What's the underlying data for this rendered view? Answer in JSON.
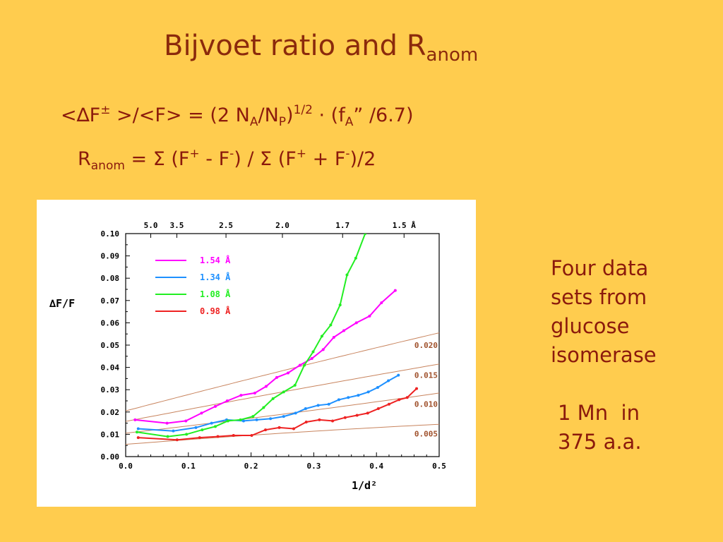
{
  "slide": {
    "title_main": "Bijvoet ratio  and  R",
    "title_sub": "anom",
    "eq1": {
      "p1": "<∆F",
      "sup1": "±",
      "p2": " >/<F> = (2 N",
      "sub1": "A",
      "p3": "/N",
      "sub2": "P",
      "p4": ")",
      "sup2": "1/2",
      "p5": " · (f",
      "sub3": "A",
      "p6": "” /6.7)"
    },
    "eq2": {
      "p1": "R",
      "sub1": "anom",
      "p2": " = Σ (F",
      "sup1": "+",
      "p3": " - F",
      "sup2": "-",
      "p4": ") / Σ (F",
      "sup3": "+",
      "p5": " + F",
      "sup4": "-",
      "p6": ")/2"
    },
    "note1": "Four data\nsets from\nglucose\nisomerase",
    "note2": "1 Mn  in\n375 a.a."
  },
  "chart_data": {
    "type": "line",
    "ylabel": "∆F/F",
    "xlabel": "1/d²",
    "xlim": [
      0.0,
      0.5
    ],
    "ylim": [
      0.0,
      0.1
    ],
    "x_ticks": [
      "0.0",
      "0.1",
      "0.2",
      "0.3",
      "0.4",
      "0.5"
    ],
    "y_ticks": [
      "0.00",
      "0.01",
      "0.02",
      "0.03",
      "0.04",
      "0.05",
      "0.06",
      "0.07",
      "0.08",
      "0.09",
      "0.10"
    ],
    "top_axis_ticks": [
      {
        "x": 0.04,
        "label": "5.0"
      },
      {
        "x": 0.0816,
        "label": "3.5"
      },
      {
        "x": 0.16,
        "label": "2.5"
      },
      {
        "x": 0.25,
        "label": "2.0"
      },
      {
        "x": 0.346,
        "label": "1.7"
      },
      {
        "x": 0.444,
        "label": "1.5 Å"
      }
    ],
    "legend_position": "top-left",
    "series": [
      {
        "name": "1.54 Å",
        "color": "#FF00FF",
        "x": [
          0.015,
          0.066,
          0.096,
          0.121,
          0.143,
          0.162,
          0.184,
          0.206,
          0.224,
          0.241,
          0.259,
          0.278,
          0.297,
          0.315,
          0.332,
          0.348,
          0.368,
          0.389,
          0.408,
          0.43
        ],
        "y": [
          0.0165,
          0.015,
          0.016,
          0.0195,
          0.0225,
          0.025,
          0.0275,
          0.0285,
          0.0315,
          0.0355,
          0.0375,
          0.041,
          0.044,
          0.048,
          0.0535,
          0.0565,
          0.06,
          0.063,
          0.069,
          0.0745
        ]
      },
      {
        "name": "1.34 Å",
        "color": "#1E90FF",
        "x": [
          0.02,
          0.076,
          0.112,
          0.137,
          0.161,
          0.188,
          0.209,
          0.231,
          0.252,
          0.271,
          0.287,
          0.307,
          0.324,
          0.34,
          0.355,
          0.371,
          0.387,
          0.402,
          0.419,
          0.435
        ],
        "y": [
          0.0125,
          0.0115,
          0.013,
          0.015,
          0.0165,
          0.016,
          0.0165,
          0.017,
          0.018,
          0.0195,
          0.0215,
          0.023,
          0.0235,
          0.0255,
          0.0265,
          0.0275,
          0.029,
          0.031,
          0.034,
          0.0365
        ]
      },
      {
        "name": "1.08 Å",
        "color": "#22EE22",
        "x": [
          0.018,
          0.067,
          0.097,
          0.122,
          0.143,
          0.163,
          0.183,
          0.203,
          0.22,
          0.235,
          0.252,
          0.27,
          0.285,
          0.299,
          0.313,
          0.327,
          0.342,
          0.353,
          0.367,
          0.382
        ],
        "y": [
          0.011,
          0.009,
          0.01,
          0.012,
          0.0135,
          0.016,
          0.0165,
          0.018,
          0.022,
          0.026,
          0.029,
          0.032,
          0.041,
          0.047,
          0.054,
          0.059,
          0.068,
          0.0815,
          0.089,
          0.1
        ]
      },
      {
        "name": "0.98 Å",
        "color": "#EE2222",
        "x": [
          0.02,
          0.082,
          0.118,
          0.147,
          0.172,
          0.201,
          0.223,
          0.245,
          0.268,
          0.288,
          0.309,
          0.33,
          0.35,
          0.369,
          0.386,
          0.403,
          0.42,
          0.436,
          0.449,
          0.464
        ],
        "y": [
          0.0085,
          0.0075,
          0.0085,
          0.009,
          0.0095,
          0.0095,
          0.012,
          0.013,
          0.0125,
          0.0155,
          0.0165,
          0.016,
          0.0175,
          0.0185,
          0.0195,
          0.0215,
          0.0235,
          0.0255,
          0.0265,
          0.0305
        ]
      }
    ],
    "reference_curves": [
      {
        "label": "0.020",
        "y": [
          0.0205,
          0.0385,
          0.0555
        ],
        "label_y": 0.05
      },
      {
        "label": "0.015",
        "y": [
          0.0158,
          0.029,
          0.0415
        ],
        "label_y": 0.0365
      },
      {
        "label": "0.010",
        "y": [
          0.0105,
          0.019,
          0.0285
        ],
        "label_y": 0.0235
      },
      {
        "label": "0.005",
        "y": [
          0.0055,
          0.0105,
          0.0145
        ],
        "label_y": 0.0103
      }
    ],
    "reference_color": "#C8845E"
  }
}
